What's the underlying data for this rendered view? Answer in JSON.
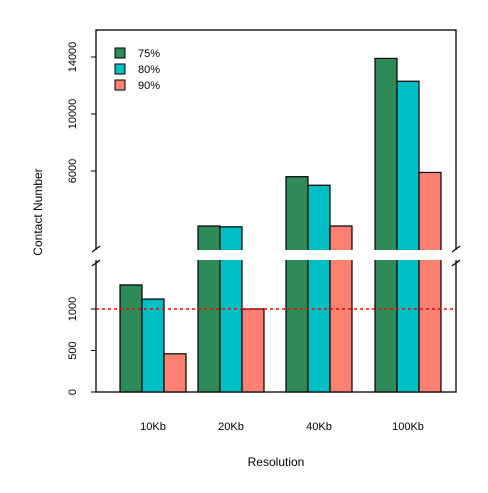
{
  "chart_data": {
    "type": "bar",
    "categories": [
      "10Kb",
      "20Kb",
      "40Kb",
      "100Kb"
    ],
    "series": [
      {
        "name": "75%",
        "color": "#2e8b57",
        "values": [
          1290,
          2000,
          5600,
          13900
        ]
      },
      {
        "name": "80%",
        "color": "#00bfc4",
        "values": [
          1120,
          1990,
          5000,
          12300
        ]
      },
      {
        "name": "90%",
        "color": "#fa8072",
        "values": [
          460,
          1000,
          2000,
          5900
        ]
      }
    ],
    "xlabel": "Resolution",
    "ylabel": "Contact Number",
    "axis_break": true,
    "lower_segment": {
      "ylim": [
        0,
        1600
      ],
      "ticks": [
        "0",
        "500",
        "1000"
      ]
    },
    "upper_segment": {
      "ylim": [
        2000,
        14000
      ],
      "ticks": [
        "6000",
        "10000",
        "14000"
      ]
    },
    "reference_line": {
      "y": 1000,
      "color": "#ff0000",
      "style": "dotted"
    },
    "legend_position": "top-left",
    "grid": false
  }
}
